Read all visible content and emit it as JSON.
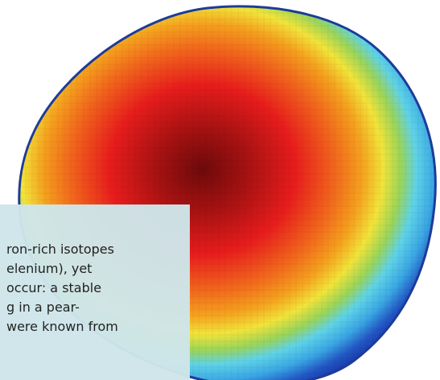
{
  "figure": {
    "colors": {
      "outer": "#1a3fb0",
      "blue": "#2f8fd8",
      "cyan": "#5fd3e8",
      "green": "#7fd06a",
      "yellow": "#f2e43a",
      "orange": "#f5921e",
      "red": "#e81c1c",
      "core": "#7a0d0d"
    }
  },
  "caption": {
    "background": "#cfe6ea",
    "lines": [
      "ron-rich isotopes",
      "elenium), yet",
      "occur: a stable",
      "g in a pear-",
      "were known from"
    ]
  }
}
